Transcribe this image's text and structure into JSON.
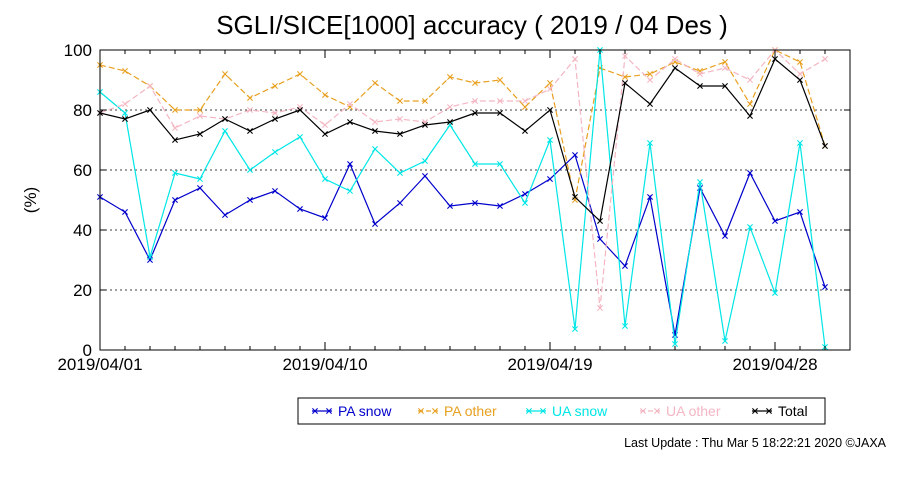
{
  "chart_data": {
    "type": "line",
    "title": "SGLI/SICE[1000] accuracy ( 2019 / 04 Des )",
    "ylabel": "(%)",
    "xlabel": "",
    "ylim": [
      0,
      100
    ],
    "yticks": [
      0,
      20,
      40,
      60,
      80,
      100
    ],
    "xticks": [
      "2019/04/01",
      "2019/04/10",
      "2019/04/19",
      "2019/04/28"
    ],
    "x": [
      "04/01",
      "04/02",
      "04/03",
      "04/04",
      "04/05",
      "04/06",
      "04/07",
      "04/08",
      "04/09",
      "04/10",
      "04/11",
      "04/12",
      "04/13",
      "04/14",
      "04/15",
      "04/16",
      "04/17",
      "04/18",
      "04/19",
      "04/20",
      "04/21",
      "04/22",
      "04/23",
      "04/24",
      "04/25",
      "04/26",
      "04/27",
      "04/28",
      "04/29",
      "04/30"
    ],
    "grid": "horizontal dotted",
    "legend_position": "bottom",
    "series": [
      {
        "name": "PA snow",
        "color": "#0000cc",
        "dashed": false,
        "values": [
          51,
          46,
          30,
          50,
          54,
          45,
          50,
          53,
          47,
          44,
          62,
          42,
          49,
          58,
          48,
          49,
          48,
          52,
          57,
          65,
          37,
          28,
          51,
          5,
          54,
          38,
          59,
          43,
          46,
          21
        ]
      },
      {
        "name": "PA other",
        "color": "#e8a020",
        "dashed": true,
        "values": [
          95,
          93,
          88,
          80,
          80,
          92,
          84,
          88,
          92,
          85,
          81,
          89,
          83,
          83,
          91,
          89,
          90,
          81,
          89,
          50,
          94,
          91,
          92,
          96,
          93,
          96,
          82,
          100,
          96,
          68
        ]
      },
      {
        "name": "UA snow",
        "color": "#00e6e6",
        "dashed": false,
        "values": [
          86,
          79,
          31,
          59,
          57,
          73,
          60,
          66,
          71,
          57,
          53,
          67,
          59,
          63,
          75,
          62,
          62,
          49,
          70,
          7,
          100,
          8,
          69,
          2,
          56,
          3,
          41,
          19,
          69,
          1
        ]
      },
      {
        "name": "UA other",
        "color": "#f4b6c2",
        "dashed": true,
        "values": [
          79,
          82,
          88,
          74,
          78,
          77,
          80,
          79,
          81,
          75,
          82,
          76,
          77,
          76,
          81,
          83,
          83,
          83,
          87,
          97,
          14,
          98,
          90,
          97,
          92,
          94,
          90,
          100,
          92,
          97
        ]
      },
      {
        "name": "Total",
        "color": "#000000",
        "dashed": false,
        "values": [
          79,
          77,
          80,
          70,
          72,
          77,
          73,
          77,
          80,
          72,
          76,
          73,
          72,
          75,
          76,
          79,
          79,
          73,
          80,
          51,
          43,
          89,
          82,
          94,
          88,
          88,
          78,
          97,
          90,
          68
        ]
      }
    ]
  },
  "footer": {
    "last_update": "Last Update : Thu Mar  5 18:22:21 2020  ©JAXA"
  }
}
